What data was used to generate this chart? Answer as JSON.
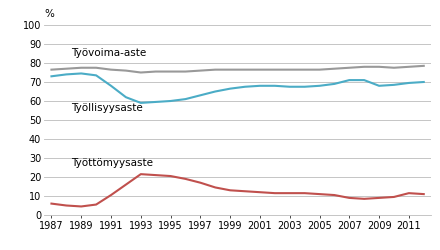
{
  "years": [
    1987,
    1988,
    1989,
    1990,
    1991,
    1992,
    1993,
    1994,
    1995,
    1996,
    1997,
    1998,
    1999,
    2000,
    2001,
    2002,
    2003,
    2004,
    2005,
    2006,
    2007,
    2008,
    2009,
    2010,
    2011,
    2012
  ],
  "tyovoima": [
    76.5,
    77.0,
    77.5,
    77.5,
    76.5,
    76.0,
    75.0,
    75.5,
    75.5,
    75.5,
    76.0,
    76.5,
    76.5,
    76.5,
    76.5,
    76.5,
    76.5,
    76.5,
    76.5,
    77.0,
    77.5,
    78.0,
    78.0,
    77.5,
    78.0,
    78.5
  ],
  "tyollisyys": [
    73.0,
    74.0,
    74.5,
    73.5,
    68.0,
    62.0,
    59.0,
    59.5,
    60.0,
    61.0,
    63.0,
    65.0,
    66.5,
    67.5,
    68.0,
    68.0,
    67.5,
    67.5,
    68.0,
    69.0,
    71.0,
    71.0,
    68.0,
    68.5,
    69.5,
    70.0
  ],
  "tyottomyys": [
    6.0,
    5.0,
    4.5,
    5.5,
    10.5,
    16.0,
    21.5,
    21.0,
    20.5,
    19.0,
    17.0,
    14.5,
    13.0,
    12.5,
    12.0,
    11.5,
    11.5,
    11.5,
    11.0,
    10.5,
    9.0,
    8.5,
    9.0,
    9.5,
    11.5,
    11.0
  ],
  "tyovoima_color": "#999999",
  "tyollisyys_color": "#4BACC6",
  "tyottomyys_color": "#C0504D",
  "annotation_tyovoima": "Työvoima-aste",
  "annotation_tyollisyys": "Työllisyysaste",
  "annotation_tyottomyys": "Työttömyysaste",
  "ylabel": "%",
  "ylim": [
    0,
    100
  ],
  "yticks": [
    0,
    10,
    20,
    30,
    40,
    50,
    60,
    70,
    80,
    90,
    100
  ],
  "xticks": [
    1987,
    1989,
    1991,
    1993,
    1995,
    1997,
    1999,
    2001,
    2003,
    2005,
    2007,
    2009,
    2011
  ],
  "line_width": 1.5,
  "background_color": "#ffffff",
  "grid_color": "#bbbbbb",
  "annotation_fontsize": 7.5,
  "tick_fontsize": 7.0
}
